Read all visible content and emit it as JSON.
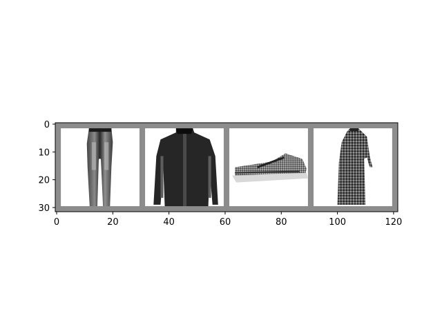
{
  "chart_data": {
    "type": "image",
    "xlim": [
      -0.5,
      121.5
    ],
    "ylim": [
      31.5,
      -0.5
    ],
    "x_ticks": [
      0,
      20,
      40,
      60,
      80,
      100,
      120
    ],
    "x_tick_labels": [
      "0",
      "20",
      "40",
      "60",
      "80",
      "100",
      "120"
    ],
    "y_ticks": [
      0,
      10,
      20,
      30
    ],
    "y_tick_labels": [
      "0",
      "10",
      "20",
      "30"
    ],
    "grid": false,
    "padding_color": "#8c8c8c",
    "tiles": [
      {
        "item": "trousers"
      },
      {
        "item": "jacket"
      },
      {
        "item": "sneaker"
      },
      {
        "item": "dress"
      }
    ]
  }
}
